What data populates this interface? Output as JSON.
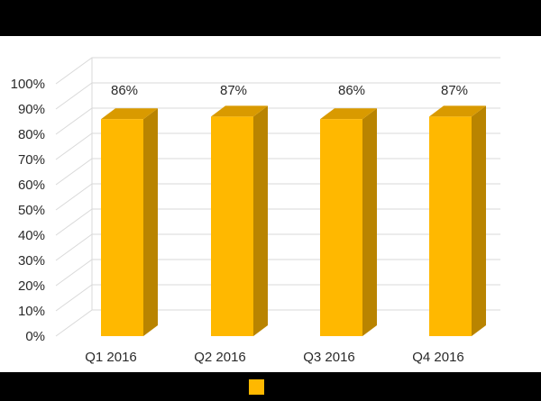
{
  "colors": {
    "bar_front": "#FFB800",
    "bar_side": "#B98400",
    "bar_top": "#D99A00",
    "grid": "#d9d9d9",
    "bars_frame": "#000000"
  },
  "chart_data": {
    "type": "bar",
    "categories": [
      "Q1 2016",
      "Q2 2016",
      "Q3 2016",
      "Q4 2016"
    ],
    "values": [
      86,
      87,
      86,
      87
    ],
    "data_labels": [
      "86%",
      "87%",
      "86%",
      "87%"
    ],
    "yticks": [
      "0%",
      "10%",
      "20%",
      "30%",
      "40%",
      "50%",
      "60%",
      "70%",
      "80%",
      "90%",
      "100%"
    ],
    "ylim": [
      0,
      100
    ],
    "style": "3d-column",
    "grid": true,
    "legend": {
      "position": "bottom",
      "color": "#FFB800"
    }
  }
}
